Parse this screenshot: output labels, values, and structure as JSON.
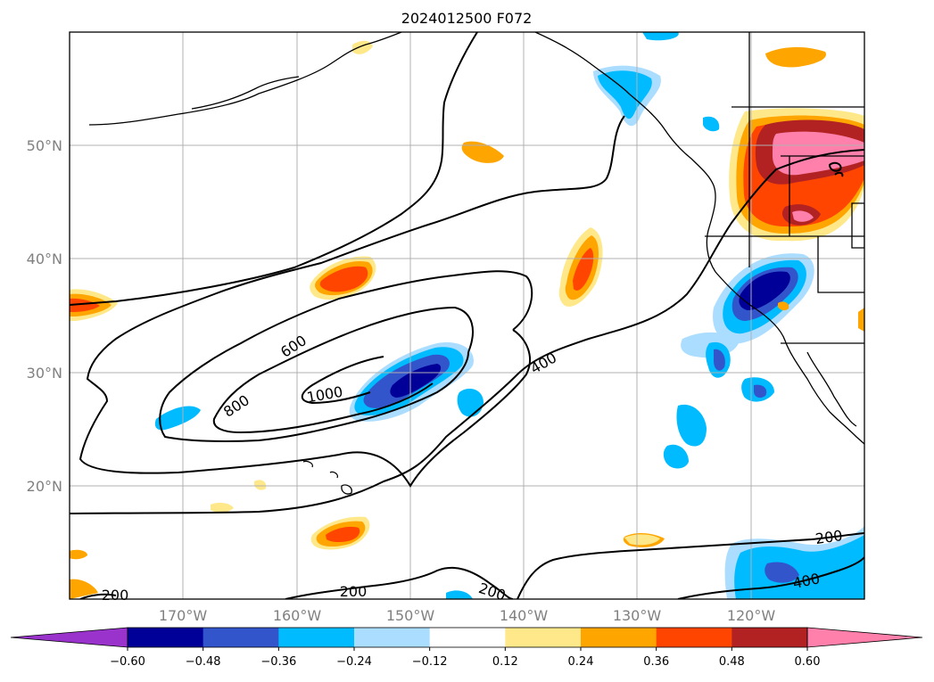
{
  "map": {
    "title": "2024012500 F072",
    "lat_labels": [
      {
        "text": "50°N",
        "lat": 50
      },
      {
        "text": "40°N",
        "lat": 40
      },
      {
        "text": "30°N",
        "lat": 30
      },
      {
        "text": "20°N",
        "lat": 20
      }
    ],
    "lon_labels": [
      {
        "text": "170°W",
        "lon": -170
      },
      {
        "text": "160°W",
        "lon": -160
      },
      {
        "text": "150°W",
        "lon": -150
      },
      {
        "text": "140°W",
        "lon": -140
      },
      {
        "text": "130°W",
        "lon": -130
      },
      {
        "text": "120°W",
        "lon": -120
      }
    ],
    "extent": {
      "lon_min": -180,
      "lon_max": -110,
      "lat_min": 10,
      "lat_max": 60
    },
    "gridlines": true,
    "contour_labels": [
      "600",
      "800",
      "1000",
      "400",
      "200",
      "200",
      "200",
      "200",
      "400"
    ]
  },
  "colorbar": {
    "ticks": [
      "−0.60",
      "−0.48",
      "−0.36",
      "−0.24",
      "−0.12",
      "0.12",
      "0.24",
      "0.36",
      "0.48",
      "0.60"
    ],
    "colors": [
      "#9933cc",
      "#000099",
      "#3355cc",
      "#00bbff",
      "#aaddff",
      "#ffffff",
      "#ffe88a",
      "#ffa500",
      "#ff4500",
      "#b22222",
      "#ff80aa"
    ],
    "extend": "both"
  }
}
